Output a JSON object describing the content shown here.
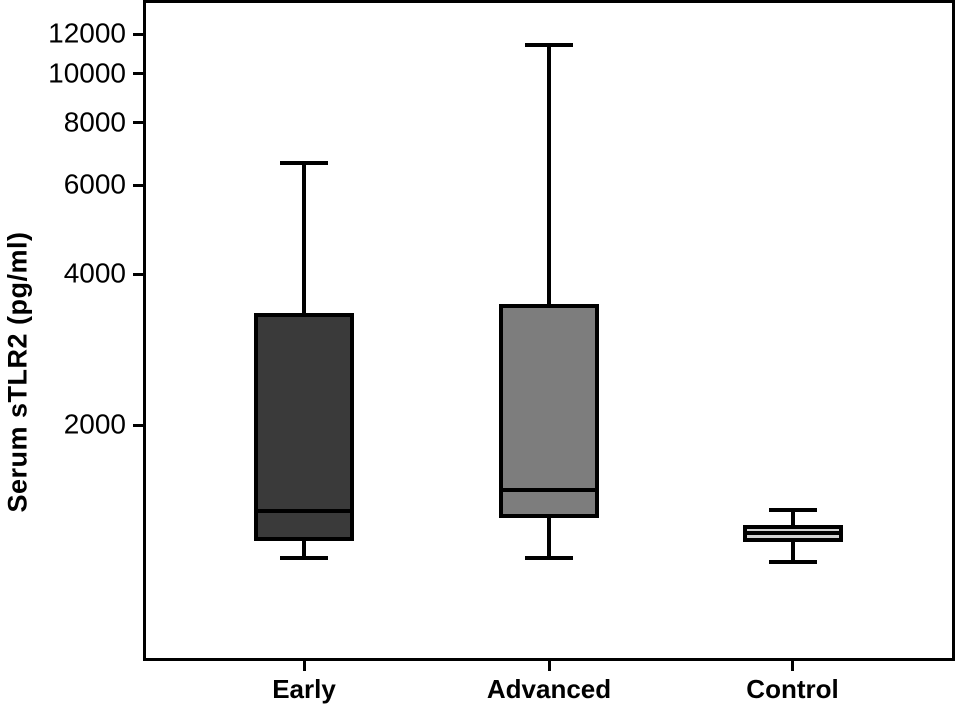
{
  "chart_data": {
    "type": "boxplot",
    "title": "",
    "xlabel": "",
    "ylabel": "Serum sTLR2 (pg/ml)",
    "y_scale": "log",
    "ylim": [
      680,
      13900
    ],
    "y_ticks": [
      12000,
      10000,
      8000,
      6000,
      4000,
      2000
    ],
    "categories": [
      "Early",
      "Advanced",
      "Control"
    ],
    "series": [
      {
        "name": "Early",
        "min": 1090,
        "q1": 1180,
        "median": 1350,
        "q3": 3340,
        "max": 6650,
        "fill": "#3a3a3a"
      },
      {
        "name": "Advanced",
        "min": 1090,
        "q1": 1310,
        "median": 1490,
        "q3": 3480,
        "max": 11400,
        "fill": "#7d7d7d"
      },
      {
        "name": "Control",
        "min": 1070,
        "q1": 1170,
        "median": 1220,
        "q3": 1270,
        "max": 1360,
        "fill": "#d2d2d2"
      }
    ],
    "legend": "none",
    "grid": false,
    "colors": {
      "stroke": "#000000",
      "background": "#ffffff"
    }
  }
}
